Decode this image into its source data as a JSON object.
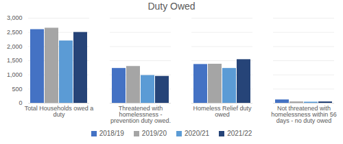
{
  "chart_data": {
    "type": "bar",
    "title": "Duty Owed",
    "categories": [
      "Total Households owed a duty",
      "Threatened with homelessness - prevention duty owed.",
      "Homeless Relief duty owed",
      "Not threatened with homelessness within 56 days - no duty owed"
    ],
    "series": [
      {
        "name": "2018/19",
        "color": "#4472c4",
        "values": [
          2600,
          1230,
          1370,
          120
        ]
      },
      {
        "name": "2019/20",
        "color": "#a5a5a5",
        "values": [
          2650,
          1300,
          1380,
          50
        ]
      },
      {
        "name": "2020/21",
        "color": "#5b9bd5",
        "values": [
          2200,
          980,
          1230,
          40
        ]
      },
      {
        "name": "2021/22",
        "color": "#264478",
        "values": [
          2500,
          950,
          1540,
          50
        ]
      }
    ],
    "ylim": [
      0,
      3000
    ],
    "yticks": [
      0,
      500,
      1000,
      1500,
      2000,
      2500,
      3000
    ],
    "grid": true,
    "legend": "bottom"
  }
}
